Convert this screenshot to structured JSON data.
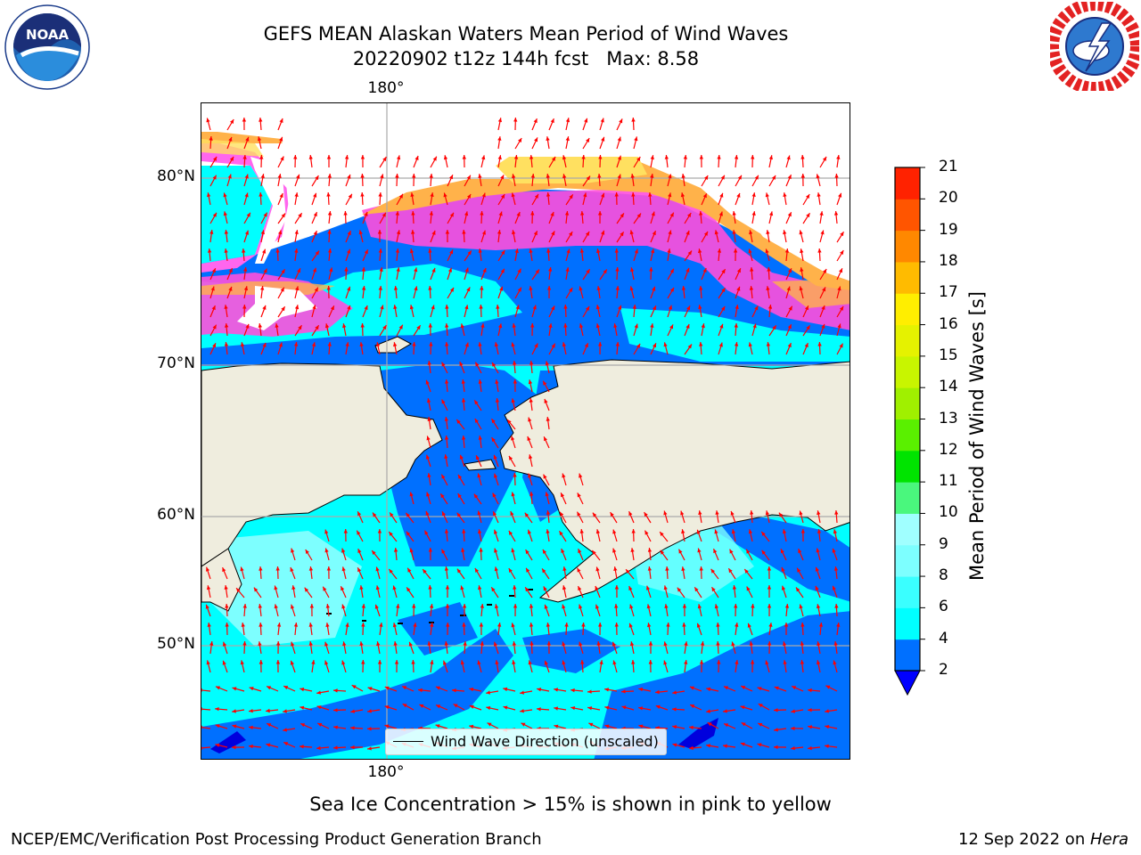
{
  "header": {
    "title_line1": "GEFS MEAN Alaskan Waters Mean Period of Wind Waves",
    "title_line2": "20220902 t12z 144h fcst   Max: 8.58"
  },
  "logos": {
    "left": "noaa-logo-icon",
    "right": "national-weather-service-logo-icon"
  },
  "map": {
    "lat_labels": [
      "80°N",
      "70°N",
      "60°N",
      "50°N"
    ],
    "lon_label_top": "180°",
    "lon_label_bottom": "180°",
    "colors": {
      "land": "#efedde",
      "ocean_deep": "#0070ff",
      "ocean_cyan": "#00ffff",
      "ocean_lightcyan": "#7dffff",
      "ocean_navy": "#0000dd",
      "ice_pink": "#ff4fdc",
      "ice_magenta": "#ff66ee",
      "ice_orange": "#ffb24a",
      "ice_yellow": "#ffe060",
      "arrow": "#ff0000"
    }
  },
  "legend": {
    "label": "Wind Wave Direction (unscaled)"
  },
  "colorbar": {
    "label": "Mean Period of Wind Waves [s]",
    "ticks": [
      "2",
      "4",
      "6",
      "8",
      "9",
      "10",
      "11",
      "12",
      "13",
      "14",
      "15",
      "16",
      "17",
      "18",
      "19",
      "20",
      "21"
    ],
    "colors": [
      "#0070ff",
      "#00ffff",
      "#3affff",
      "#7dffff",
      "#a0ffff",
      "#4af77d",
      "#00e400",
      "#5af000",
      "#a0f000",
      "#c8f500",
      "#e5f200",
      "#ffee00",
      "#ffbb00",
      "#ff8800",
      "#ff5500",
      "#ff2200",
      "#ff0000"
    ],
    "under_color": "#0000ff"
  },
  "footer": {
    "note": "Sea Ice Concentration > 15% is shown in pink to yellow",
    "left": "NCEP/EMC/Verification Post Processing Product Generation Branch",
    "right_date": "12 Sep 2022 on ",
    "right_host": "Hera"
  }
}
